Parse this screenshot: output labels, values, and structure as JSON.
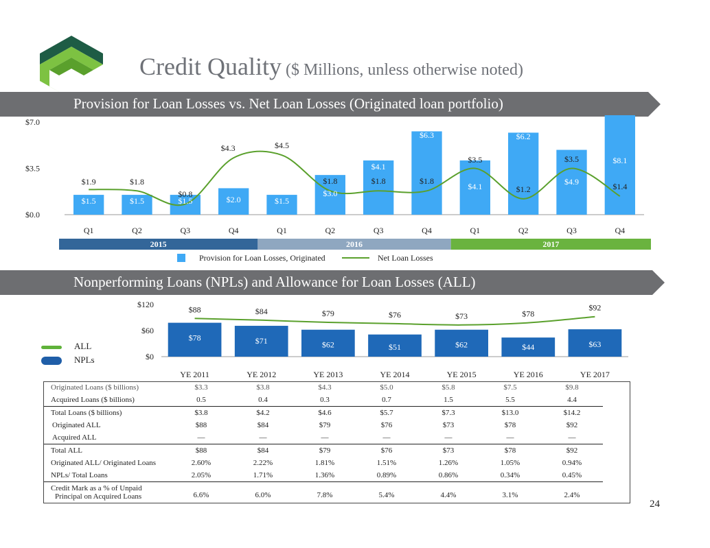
{
  "title": {
    "main": "Credit Quality",
    "sub": "($ Millions, unless otherwise noted)"
  },
  "banner1": {
    "text": "Provision for Loan Losses vs. Net Loan Losses (Originated loan portfolio)"
  },
  "banner2": {
    "text": "Nonperforming Loans (NPLs) and Allowance for Loan Losses (ALL)"
  },
  "colors": {
    "bar1": "#3fa9f5",
    "line": "#5aa02c",
    "bar2": "#1f69b8",
    "y2015": "#336699",
    "y2016": "#8fa7c0",
    "y2017": "#6ab33f",
    "banner": "#6d6e71"
  },
  "chart_data": [
    {
      "type": "bar",
      "categories": [
        "Q1",
        "Q2",
        "Q3",
        "Q4",
        "Q1",
        "Q2",
        "Q3",
        "Q4",
        "Q1",
        "Q2",
        "Q3",
        "Q4"
      ],
      "year_groups": [
        {
          "label": "2015",
          "count": 4
        },
        {
          "label": "2016",
          "count": 4
        },
        {
          "label": "2017",
          "count": 4
        }
      ],
      "yticks": [
        "$0.0",
        "$3.5",
        "$7.0"
      ],
      "ylim": [
        0,
        7.0
      ],
      "series": [
        {
          "name": "Provision for Loan Losses, Originated",
          "kind": "bar",
          "values": [
            1.5,
            1.5,
            1.5,
            2.0,
            1.5,
            3.0,
            4.1,
            6.3,
            4.1,
            6.2,
            4.9,
            8.1
          ],
          "labels": [
            "$1.5",
            "$1.5",
            "$1.5",
            "$2.0",
            "$1.5",
            "$3.0",
            "$4.1",
            "$6.3",
            "$4.1",
            "$6.2",
            "$4.9",
            "$8.1"
          ]
        },
        {
          "name": "Net Loan Losses",
          "kind": "line",
          "values": [
            1.9,
            1.8,
            0.8,
            4.3,
            4.5,
            1.8,
            1.8,
            1.8,
            3.5,
            1.2,
            3.5,
            1.4
          ],
          "labels": [
            "$1.9",
            "$1.8",
            "$0.8",
            "$4.3",
            "$4.5",
            "$1.8",
            "$1.8",
            "$1.8",
            "$3.5",
            "$1.2",
            "$3.5",
            "$1.4"
          ]
        }
      ]
    },
    {
      "type": "bar",
      "categories": [
        "YE 2011",
        "YE 2012",
        "YE 2013",
        "YE 2014",
        "YE 2015",
        "YE 2016",
        "YE 2017"
      ],
      "yticks": [
        "$0",
        "$60",
        "$120"
      ],
      "ylim": [
        0,
        120
      ],
      "series": [
        {
          "name": "NPLs",
          "kind": "bar",
          "values": [
            78,
            71,
            62,
            51,
            62,
            44,
            63
          ],
          "labels": [
            "$78",
            "$71",
            "$62",
            "$51",
            "$62",
            "$44",
            "$63"
          ]
        },
        {
          "name": "ALL",
          "kind": "line",
          "values": [
            88,
            84,
            79,
            76,
            73,
            78,
            92
          ],
          "labels": [
            "$88",
            "$84",
            "$79",
            "$76",
            "$73",
            "$78",
            "$92"
          ]
        }
      ]
    },
    {
      "type": "table",
      "rows": [
        {
          "label": "Originated Loans ($ billions)",
          "values": [
            "$3.3",
            "$3.8",
            "$4.3",
            "$5.0",
            "$5.8",
            "$7.5",
            "$9.8"
          ]
        },
        {
          "label": "Acquired Loans ($ billions)",
          "values": [
            "0.5",
            "0.4",
            "0.3",
            "0.7",
            "1.5",
            "5.5",
            "4.4"
          ]
        },
        {
          "label": "Total Loans ($ billions)",
          "values": [
            "$3.8",
            "$4.2",
            "$4.6",
            "$5.7",
            "$7.3",
            "$13.0",
            "$14.2"
          ]
        },
        {
          "label": "Originated ALL",
          "values": [
            "$88",
            "$84",
            "$79",
            "$76",
            "$73",
            "$78",
            "$92"
          ]
        },
        {
          "label": "Acquired ALL",
          "values": [
            "—",
            "—",
            "—",
            "—",
            "—",
            "—",
            "—"
          ]
        },
        {
          "label": "Total ALL",
          "values": [
            "$88",
            "$84",
            "$79",
            "$76",
            "$73",
            "$78",
            "$92"
          ]
        },
        {
          "label": "Originated ALL/ Originated Loans",
          "values": [
            "2.60%",
            "2.22%",
            "1.81%",
            "1.51%",
            "1.26%",
            "1.05%",
            "0.94%"
          ]
        },
        {
          "label": "NPLs/ Total Loans",
          "values": [
            "2.05%",
            "1.71%",
            "1.36%",
            "0.89%",
            "0.86%",
            "0.34%",
            "0.45%"
          ]
        },
        {
          "label_line1": "Credit Mark as a % of  Unpaid",
          "label_line2": "Principal on Acquired Loans",
          "values": [
            "6.6%",
            "6.0%",
            "7.8%",
            "5.4%",
            "4.4%",
            "3.1%",
            "2.4%"
          ]
        }
      ]
    }
  ],
  "page_number": "24"
}
